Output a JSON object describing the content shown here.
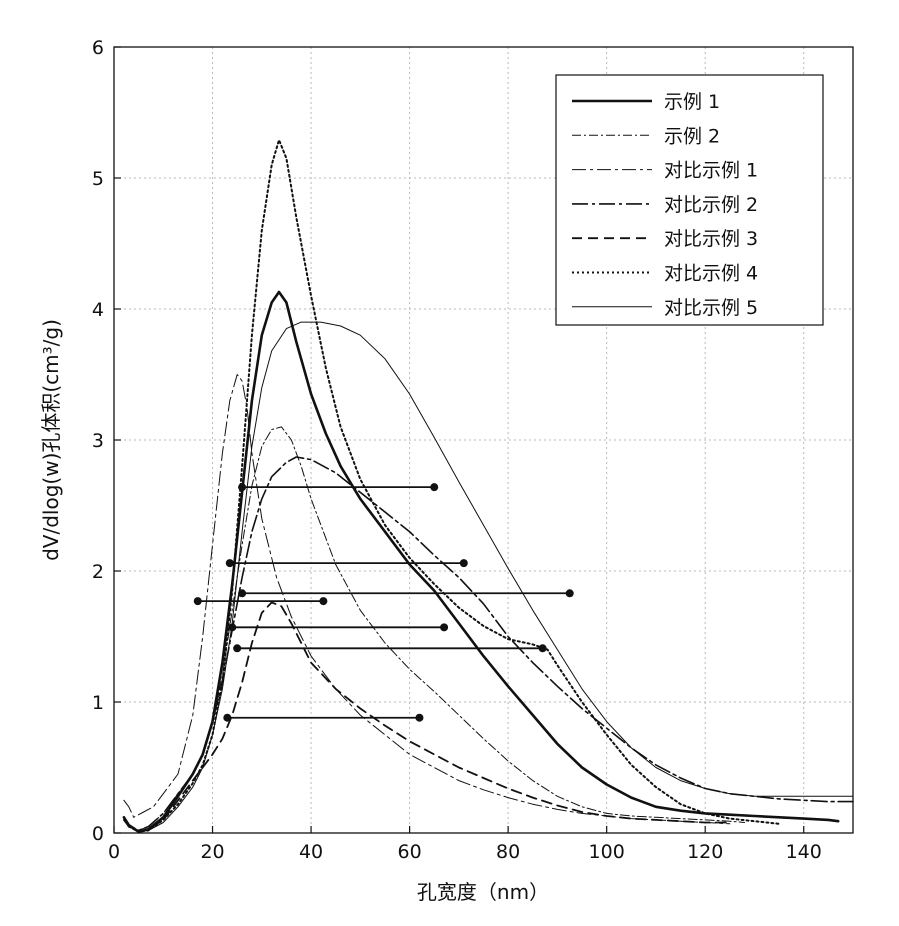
{
  "chart_data": {
    "type": "line",
    "xlabel": "孔宽度（nm）",
    "ylabel": "dV/dlog(w)孔体积(cm³/g)",
    "xlim": [
      0,
      150
    ],
    "ylim": [
      0,
      6
    ],
    "xticks": [
      0,
      20,
      40,
      60,
      80,
      100,
      120,
      140
    ],
    "yticks": [
      0,
      1,
      2,
      3,
      4,
      5,
      6
    ],
    "grid": true,
    "legend_position": "top-right",
    "series": [
      {
        "name": "示例 1",
        "style": "thick-solid",
        "points": [
          [
            2,
            0.12
          ],
          [
            3,
            0.06
          ],
          [
            5,
            0.01
          ],
          [
            7,
            0.03
          ],
          [
            10,
            0.12
          ],
          [
            13,
            0.28
          ],
          [
            16,
            0.45
          ],
          [
            18,
            0.6
          ],
          [
            20,
            0.85
          ],
          [
            22,
            1.3
          ],
          [
            24,
            1.9
          ],
          [
            26,
            2.6
          ],
          [
            28,
            3.3
          ],
          [
            30,
            3.8
          ],
          [
            32,
            4.05
          ],
          [
            33.5,
            4.13
          ],
          [
            35,
            4.05
          ],
          [
            37,
            3.75
          ],
          [
            40,
            3.35
          ],
          [
            43,
            3.05
          ],
          [
            46,
            2.8
          ],
          [
            50,
            2.55
          ],
          [
            55,
            2.3
          ],
          [
            60,
            2.05
          ],
          [
            65,
            1.85
          ],
          [
            70,
            1.6
          ],
          [
            75,
            1.35
          ],
          [
            80,
            1.12
          ],
          [
            85,
            0.9
          ],
          [
            90,
            0.68
          ],
          [
            95,
            0.5
          ],
          [
            100,
            0.37
          ],
          [
            105,
            0.27
          ],
          [
            110,
            0.2
          ],
          [
            115,
            0.17
          ],
          [
            120,
            0.15
          ],
          [
            125,
            0.14
          ],
          [
            130,
            0.13
          ],
          [
            135,
            0.12
          ],
          [
            140,
            0.11
          ],
          [
            145,
            0.1
          ],
          [
            147,
            0.09
          ]
        ],
        "fwhm": {
          "y": 2.06,
          "x_start": 23.5,
          "x_end": 71
        }
      },
      {
        "name": "示例 2",
        "style": "dash-dot-thin",
        "points": [
          [
            2,
            0.1
          ],
          [
            3,
            0.05
          ],
          [
            5,
            0.02
          ],
          [
            7,
            0.05
          ],
          [
            10,
            0.15
          ],
          [
            13,
            0.3
          ],
          [
            16,
            0.45
          ],
          [
            18,
            0.6
          ],
          [
            20,
            0.85
          ],
          [
            22,
            1.2
          ],
          [
            24,
            1.7
          ],
          [
            26,
            2.2
          ],
          [
            28,
            2.65
          ],
          [
            30,
            2.95
          ],
          [
            32,
            3.08
          ],
          [
            34,
            3.1
          ],
          [
            36,
            3.0
          ],
          [
            38,
            2.8
          ],
          [
            40,
            2.55
          ],
          [
            45,
            2.05
          ],
          [
            50,
            1.7
          ],
          [
            55,
            1.45
          ],
          [
            60,
            1.25
          ],
          [
            65,
            1.08
          ],
          [
            70,
            0.9
          ],
          [
            75,
            0.72
          ],
          [
            80,
            0.55
          ],
          [
            85,
            0.4
          ],
          [
            90,
            0.28
          ],
          [
            95,
            0.2
          ],
          [
            100,
            0.15
          ],
          [
            105,
            0.13
          ],
          [
            110,
            0.12
          ],
          [
            115,
            0.11
          ],
          [
            120,
            0.1
          ],
          [
            125,
            0.09
          ],
          [
            128,
            0.08
          ]
        ],
        "fwhm": {
          "y": 1.57,
          "x_start": 24,
          "x_end": 67
        }
      },
      {
        "name": "对比示例 1",
        "style": "dash-dot-medium",
        "points": [
          [
            2,
            0.25
          ],
          [
            3,
            0.2
          ],
          [
            4,
            0.12
          ],
          [
            6,
            0.16
          ],
          [
            8,
            0.2
          ],
          [
            10,
            0.3
          ],
          [
            13,
            0.45
          ],
          [
            16,
            0.9
          ],
          [
            18,
            1.5
          ],
          [
            20,
            2.2
          ],
          [
            22,
            2.9
          ],
          [
            23.5,
            3.3
          ],
          [
            25,
            3.5
          ],
          [
            26,
            3.45
          ],
          [
            27,
            3.25
          ],
          [
            28,
            2.9
          ],
          [
            30,
            2.4
          ],
          [
            33,
            1.95
          ],
          [
            36,
            1.65
          ],
          [
            40,
            1.35
          ],
          [
            45,
            1.1
          ],
          [
            50,
            0.9
          ],
          [
            55,
            0.75
          ],
          [
            60,
            0.6
          ],
          [
            65,
            0.5
          ],
          [
            70,
            0.4
          ],
          [
            75,
            0.33
          ],
          [
            80,
            0.27
          ],
          [
            85,
            0.22
          ],
          [
            90,
            0.18
          ],
          [
            95,
            0.15
          ],
          [
            100,
            0.13
          ],
          [
            105,
            0.11
          ],
          [
            110,
            0.1
          ],
          [
            115,
            0.09
          ],
          [
            120,
            0.08
          ],
          [
            125,
            0.07
          ]
        ],
        "fwhm": {
          "y": 1.77,
          "x_start": 17,
          "x_end": 42.5
        }
      },
      {
        "name": "对比示例 2",
        "style": "long-dash-dot",
        "points": [
          [
            2,
            0.12
          ],
          [
            3,
            0.06
          ],
          [
            5,
            0.02
          ],
          [
            7,
            0.05
          ],
          [
            10,
            0.15
          ],
          [
            13,
            0.3
          ],
          [
            16,
            0.45
          ],
          [
            18,
            0.6
          ],
          [
            20,
            0.85
          ],
          [
            22,
            1.15
          ],
          [
            24,
            1.55
          ],
          [
            26,
            1.95
          ],
          [
            28,
            2.3
          ],
          [
            30,
            2.55
          ],
          [
            32,
            2.72
          ],
          [
            35,
            2.83
          ],
          [
            37,
            2.87
          ],
          [
            40,
            2.85
          ],
          [
            45,
            2.75
          ],
          [
            50,
            2.6
          ],
          [
            55,
            2.45
          ],
          [
            60,
            2.3
          ],
          [
            65,
            2.12
          ],
          [
            70,
            1.95
          ],
          [
            75,
            1.75
          ],
          [
            80,
            1.5
          ],
          [
            85,
            1.3
          ],
          [
            90,
            1.12
          ],
          [
            95,
            0.95
          ],
          [
            100,
            0.8
          ],
          [
            105,
            0.65
          ],
          [
            110,
            0.52
          ],
          [
            115,
            0.42
          ],
          [
            120,
            0.34
          ],
          [
            125,
            0.3
          ],
          [
            130,
            0.28
          ],
          [
            135,
            0.26
          ],
          [
            140,
            0.25
          ],
          [
            145,
            0.24
          ],
          [
            150,
            0.24
          ]
        ],
        "fwhm": {
          "y": 1.41,
          "x_start": 25,
          "x_end": 87
        }
      },
      {
        "name": "对比示例 3",
        "style": "dashed",
        "points": [
          [
            2,
            0.1
          ],
          [
            3,
            0.05
          ],
          [
            5,
            0.01
          ],
          [
            7,
            0.03
          ],
          [
            10,
            0.1
          ],
          [
            13,
            0.25
          ],
          [
            16,
            0.4
          ],
          [
            18,
            0.5
          ],
          [
            20,
            0.6
          ],
          [
            22,
            0.72
          ],
          [
            24,
            0.9
          ],
          [
            26,
            1.15
          ],
          [
            28,
            1.45
          ],
          [
            30,
            1.68
          ],
          [
            32,
            1.76
          ],
          [
            34,
            1.73
          ],
          [
            36,
            1.6
          ],
          [
            38,
            1.45
          ],
          [
            40,
            1.3
          ],
          [
            45,
            1.1
          ],
          [
            50,
            0.95
          ],
          [
            55,
            0.82
          ],
          [
            60,
            0.7
          ],
          [
            65,
            0.6
          ],
          [
            70,
            0.5
          ],
          [
            75,
            0.42
          ],
          [
            80,
            0.34
          ],
          [
            85,
            0.27
          ],
          [
            90,
            0.21
          ],
          [
            95,
            0.16
          ],
          [
            100,
            0.13
          ],
          [
            105,
            0.11
          ],
          [
            110,
            0.1
          ],
          [
            115,
            0.09
          ],
          [
            120,
            0.08
          ],
          [
            125,
            0.08
          ]
        ],
        "fwhm": {
          "y": 0.88,
          "x_start": 23,
          "x_end": 62
        }
      },
      {
        "name": "对比示例 4",
        "style": "dotted",
        "points": [
          [
            2,
            0.12
          ],
          [
            3,
            0.05
          ],
          [
            5,
            0.01
          ],
          [
            7,
            0.02
          ],
          [
            10,
            0.1
          ],
          [
            13,
            0.22
          ],
          [
            16,
            0.38
          ],
          [
            18,
            0.52
          ],
          [
            20,
            0.75
          ],
          [
            22,
            1.15
          ],
          [
            24,
            1.85
          ],
          [
            26,
            2.8
          ],
          [
            28,
            3.8
          ],
          [
            30,
            4.6
          ],
          [
            32,
            5.1
          ],
          [
            33.5,
            5.29
          ],
          [
            35,
            5.15
          ],
          [
            37,
            4.7
          ],
          [
            40,
            4.1
          ],
          [
            43,
            3.55
          ],
          [
            46,
            3.1
          ],
          [
            50,
            2.7
          ],
          [
            55,
            2.35
          ],
          [
            60,
            2.1
          ],
          [
            65,
            1.9
          ],
          [
            70,
            1.72
          ],
          [
            75,
            1.58
          ],
          [
            80,
            1.48
          ],
          [
            85,
            1.44
          ],
          [
            88,
            1.4
          ],
          [
            90,
            1.28
          ],
          [
            95,
            1.0
          ],
          [
            100,
            0.75
          ],
          [
            105,
            0.52
          ],
          [
            110,
            0.35
          ],
          [
            115,
            0.22
          ],
          [
            120,
            0.15
          ],
          [
            125,
            0.11
          ],
          [
            130,
            0.09
          ],
          [
            135,
            0.07
          ]
        ],
        "fwhm": {
          "y": 2.64,
          "x_start": 26,
          "x_end": 65
        }
      },
      {
        "name": "对比示例 5",
        "style": "thin-solid",
        "points": [
          [
            2,
            0.1
          ],
          [
            3,
            0.05
          ],
          [
            5,
            0.01
          ],
          [
            7,
            0.02
          ],
          [
            10,
            0.08
          ],
          [
            13,
            0.2
          ],
          [
            16,
            0.35
          ],
          [
            18,
            0.5
          ],
          [
            20,
            0.75
          ],
          [
            22,
            1.1
          ],
          [
            24,
            1.6
          ],
          [
            26,
            2.3
          ],
          [
            28,
            2.95
          ],
          [
            30,
            3.4
          ],
          [
            32,
            3.68
          ],
          [
            35,
            3.85
          ],
          [
            38,
            3.9
          ],
          [
            42,
            3.9
          ],
          [
            46,
            3.87
          ],
          [
            50,
            3.8
          ],
          [
            55,
            3.62
          ],
          [
            60,
            3.35
          ],
          [
            65,
            3.02
          ],
          [
            70,
            2.68
          ],
          [
            75,
            2.35
          ],
          [
            80,
            2.02
          ],
          [
            85,
            1.7
          ],
          [
            90,
            1.4
          ],
          [
            95,
            1.1
          ],
          [
            100,
            0.85
          ],
          [
            105,
            0.65
          ],
          [
            110,
            0.5
          ],
          [
            115,
            0.4
          ],
          [
            120,
            0.34
          ],
          [
            125,
            0.3
          ],
          [
            130,
            0.28
          ],
          [
            135,
            0.28
          ],
          [
            140,
            0.28
          ],
          [
            145,
            0.28
          ],
          [
            150,
            0.28
          ]
        ],
        "fwhm": {
          "y": 1.83,
          "x_start": 26,
          "x_end": 92.5
        }
      }
    ]
  }
}
